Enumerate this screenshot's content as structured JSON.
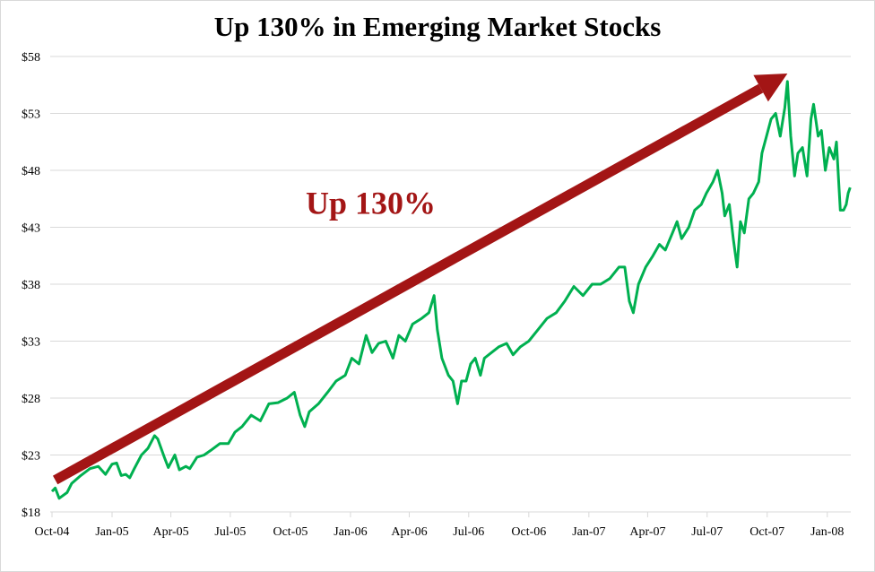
{
  "chart_data": {
    "type": "line",
    "title": "Up 130% in Emerging Market Stocks",
    "xlabel": "",
    "ylabel": "",
    "ylim": [
      18,
      58
    ],
    "y_ticks": [
      18,
      23,
      28,
      33,
      38,
      43,
      48,
      53,
      58
    ],
    "y_tick_labels": [
      "$18",
      "$23",
      "$28",
      "$33",
      "$38",
      "$43",
      "$48",
      "$53",
      "$58"
    ],
    "x_tick_labels": [
      "Oct-04",
      "Jan-05",
      "Apr-05",
      "Jul-05",
      "Oct-05",
      "Jan-06",
      "Apr-06",
      "Jul-06",
      "Oct-06",
      "Jan-07",
      "Apr-07",
      "Jul-07",
      "Oct-07",
      "Jan-08"
    ],
    "x_ticks": [
      "2004-10-01",
      "2005-01-01",
      "2005-04-01",
      "2005-07-01",
      "2005-10-01",
      "2006-01-01",
      "2006-04-01",
      "2006-07-01",
      "2006-10-01",
      "2007-01-01",
      "2007-04-01",
      "2007-07-01",
      "2007-10-01",
      "2008-01-01"
    ],
    "xlim": [
      "2004-10-01",
      "2008-02-06"
    ],
    "grid": "horizontal",
    "legend": "none",
    "series": [
      {
        "color": "#00b050",
        "x": [
          "2004-10-01",
          "2004-10-06",
          "2004-10-12",
          "2004-10-24",
          "2004-10-31",
          "2004-11-14",
          "2004-11-28",
          "2004-12-11",
          "2004-12-22",
          "2005-01-01",
          "2005-01-08",
          "2005-01-15",
          "2005-01-22",
          "2005-01-28",
          "2005-02-04",
          "2005-02-15",
          "2005-02-25",
          "2005-03-07",
          "2005-03-12",
          "2005-03-22",
          "2005-03-28",
          "2005-04-07",
          "2005-04-14",
          "2005-04-24",
          "2005-04-30",
          "2005-05-11",
          "2005-05-22",
          "2005-06-01",
          "2005-06-15",
          "2005-06-28",
          "2005-07-08",
          "2005-07-19",
          "2005-08-02",
          "2005-08-16",
          "2005-08-29",
          "2005-09-12",
          "2005-09-26",
          "2005-10-07",
          "2005-10-16",
          "2005-10-23",
          "2005-10-30",
          "2005-11-13",
          "2005-11-27",
          "2005-12-10",
          "2005-12-24",
          "2006-01-03",
          "2006-01-14",
          "2006-01-25",
          "2006-02-03",
          "2006-02-13",
          "2006-02-24",
          "2006-03-07",
          "2006-03-16",
          "2006-03-26",
          "2006-04-06",
          "2006-04-20",
          "2006-05-01",
          "2006-05-09",
          "2006-05-14",
          "2006-05-21",
          "2006-05-31",
          "2006-06-07",
          "2006-06-14",
          "2006-06-20",
          "2006-06-27",
          "2006-07-04",
          "2006-07-11",
          "2006-07-19",
          "2006-07-25",
          "2006-08-05",
          "2006-08-16",
          "2006-08-28",
          "2006-09-07",
          "2006-09-18",
          "2006-10-01",
          "2006-10-15",
          "2006-10-29",
          "2006-11-12",
          "2006-11-25",
          "2006-12-09",
          "2006-12-23",
          "2007-01-06",
          "2007-01-19",
          "2007-02-02",
          "2007-02-16",
          "2007-02-25",
          "2007-03-04",
          "2007-03-10",
          "2007-03-18",
          "2007-03-29",
          "2007-04-09",
          "2007-04-19",
          "2007-04-28",
          "2007-05-09",
          "2007-05-16",
          "2007-05-23",
          "2007-06-03",
          "2007-06-12",
          "2007-06-22",
          "2007-06-30",
          "2007-07-10",
          "2007-07-17",
          "2007-07-24",
          "2007-07-28",
          "2007-08-04",
          "2007-08-10",
          "2007-08-16",
          "2007-08-21",
          "2007-08-27",
          "2007-09-03",
          "2007-09-10",
          "2007-09-18",
          "2007-09-23",
          "2007-09-30",
          "2007-10-07",
          "2007-10-14",
          "2007-10-21",
          "2007-10-28",
          "2007-11-01",
          "2007-11-06",
          "2007-11-12",
          "2007-11-17",
          "2007-11-24",
          "2007-12-01",
          "2007-12-07",
          "2007-12-11",
          "2007-12-18",
          "2007-12-23",
          "2007-12-29",
          "2008-01-04",
          "2008-01-11",
          "2008-01-15",
          "2008-01-21",
          "2008-01-26",
          "2008-01-30",
          "2008-02-02",
          "2008-02-05"
        ],
        "values": [
          19.8,
          20.1,
          19.2,
          19.7,
          20.5,
          21.2,
          21.8,
          22.0,
          21.3,
          22.2,
          22.3,
          21.2,
          21.3,
          21.0,
          21.8,
          23.0,
          23.6,
          24.7,
          24.4,
          22.8,
          21.9,
          23.0,
          21.7,
          22.0,
          21.8,
          22.8,
          23.0,
          23.4,
          24.0,
          24.0,
          25.0,
          25.5,
          26.5,
          26.0,
          27.5,
          27.6,
          28.0,
          28.5,
          26.5,
          25.5,
          26.8,
          27.5,
          28.5,
          29.5,
          30.0,
          31.5,
          31.0,
          33.5,
          32.0,
          32.8,
          33.0,
          31.5,
          33.5,
          33.0,
          34.5,
          35.0,
          35.5,
          37.0,
          34.0,
          31.5,
          30.0,
          29.5,
          27.5,
          29.5,
          29.5,
          31.0,
          31.5,
          30.0,
          31.5,
          32.0,
          32.5,
          32.8,
          31.8,
          32.5,
          33.0,
          34.0,
          35.0,
          35.5,
          36.5,
          37.8,
          37.0,
          38.0,
          38.0,
          38.5,
          39.5,
          39.5,
          36.5,
          35.5,
          38.0,
          39.5,
          40.5,
          41.5,
          41.0,
          42.5,
          43.5,
          42.0,
          43.0,
          44.5,
          45.0,
          46.0,
          47.0,
          48.0,
          46.0,
          44.0,
          45.0,
          42.0,
          39.5,
          43.5,
          42.5,
          45.5,
          46.0,
          47.0,
          49.5,
          51.0,
          52.5,
          53.0,
          51.0,
          53.5,
          55.8,
          51.0,
          47.5,
          49.5,
          50.0,
          47.5,
          52.5,
          53.8,
          51.0,
          51.5,
          48.0,
          50.0,
          49.0,
          50.5,
          44.5,
          44.5,
          45.0,
          46.0,
          46.5
        ]
      }
    ],
    "annotations": [
      {
        "type": "arrow",
        "color": "#a31515",
        "from": [
          "2004-10-06",
          20.8
        ],
        "to": [
          "2007-11-01",
          56.5
        ]
      },
      {
        "type": "text",
        "text": "Up 130%",
        "color": "#a31515",
        "at": [
          "2006-02-01",
          44.2
        ]
      }
    ]
  }
}
